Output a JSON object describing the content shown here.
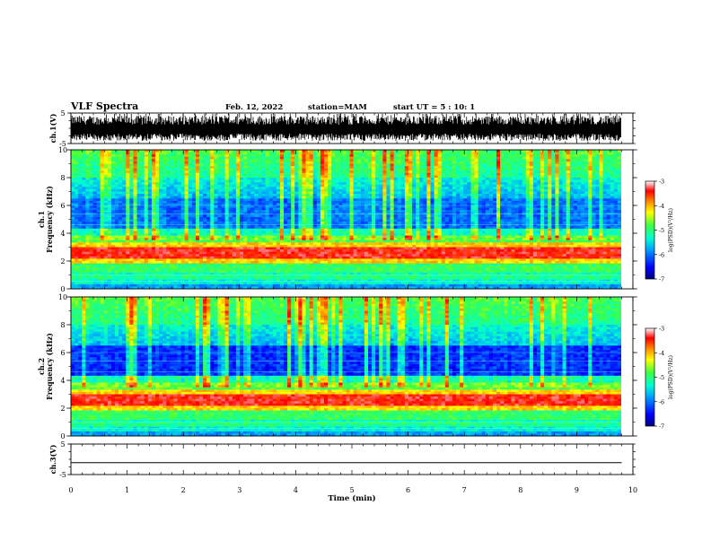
{
  "header": {
    "title": "VLF Spectra",
    "date": "Feb. 12, 2022",
    "station": "station=MAM",
    "start": "start UT = 5 : 10: 1"
  },
  "chart_data": [
    {
      "type": "line",
      "panel": "ch1-waveform",
      "ylabel": "ch.1(V)",
      "ylim": [
        -5,
        5
      ],
      "yticks": [
        "5",
        "-5"
      ],
      "xlim": [
        0,
        10
      ],
      "series": [
        {
          "values_description": null
        }
      ]
    },
    {
      "type": "heatmap",
      "panel": "ch1-spectrogram",
      "ylabel_line1": "ch.1",
      "ylabel_line2": "Frequency (kHz)",
      "ylim": [
        0,
        10
      ],
      "yticks": [
        "0",
        "2",
        "4",
        "6",
        "8",
        "10"
      ],
      "xlim": [
        0,
        10
      ],
      "colorbar": {
        "label": "log(PSD)(V²/Hz)",
        "range": [
          -7,
          -3
        ],
        "ticks": [
          "-3",
          "-4",
          "-5",
          "-6",
          "-7"
        ]
      }
    },
    {
      "type": "heatmap",
      "panel": "ch2-spectrogram",
      "ylabel_line1": "ch.2",
      "ylabel_line2": "Frequency (kHz)",
      "ylim": [
        0,
        10
      ],
      "yticks": [
        "0",
        "2",
        "4",
        "6",
        "8",
        "10"
      ],
      "xlim": [
        0,
        10
      ],
      "colorbar": {
        "label": "log(PSD)(V²/Hz)",
        "range": [
          -7,
          -3
        ],
        "ticks": [
          "-3",
          "-4",
          "-5",
          "-6",
          "-7"
        ]
      }
    },
    {
      "type": "line",
      "panel": "ch3-waveform",
      "ylabel": "ch.3(V)",
      "ylim": [
        -5,
        5
      ],
      "yticks": [
        "5",
        "-5"
      ],
      "xlim": [
        0,
        10
      ],
      "series": [
        {
          "values": [
            -1.1,
            -1.1
          ],
          "x": [
            0,
            9.8
          ]
        }
      ]
    }
  ],
  "xaxis": {
    "label": "Time (min)",
    "ticks": [
      "0",
      "1",
      "2",
      "3",
      "4",
      "5",
      "6",
      "7",
      "8",
      "9",
      "10"
    ],
    "range": [
      0,
      10
    ]
  }
}
